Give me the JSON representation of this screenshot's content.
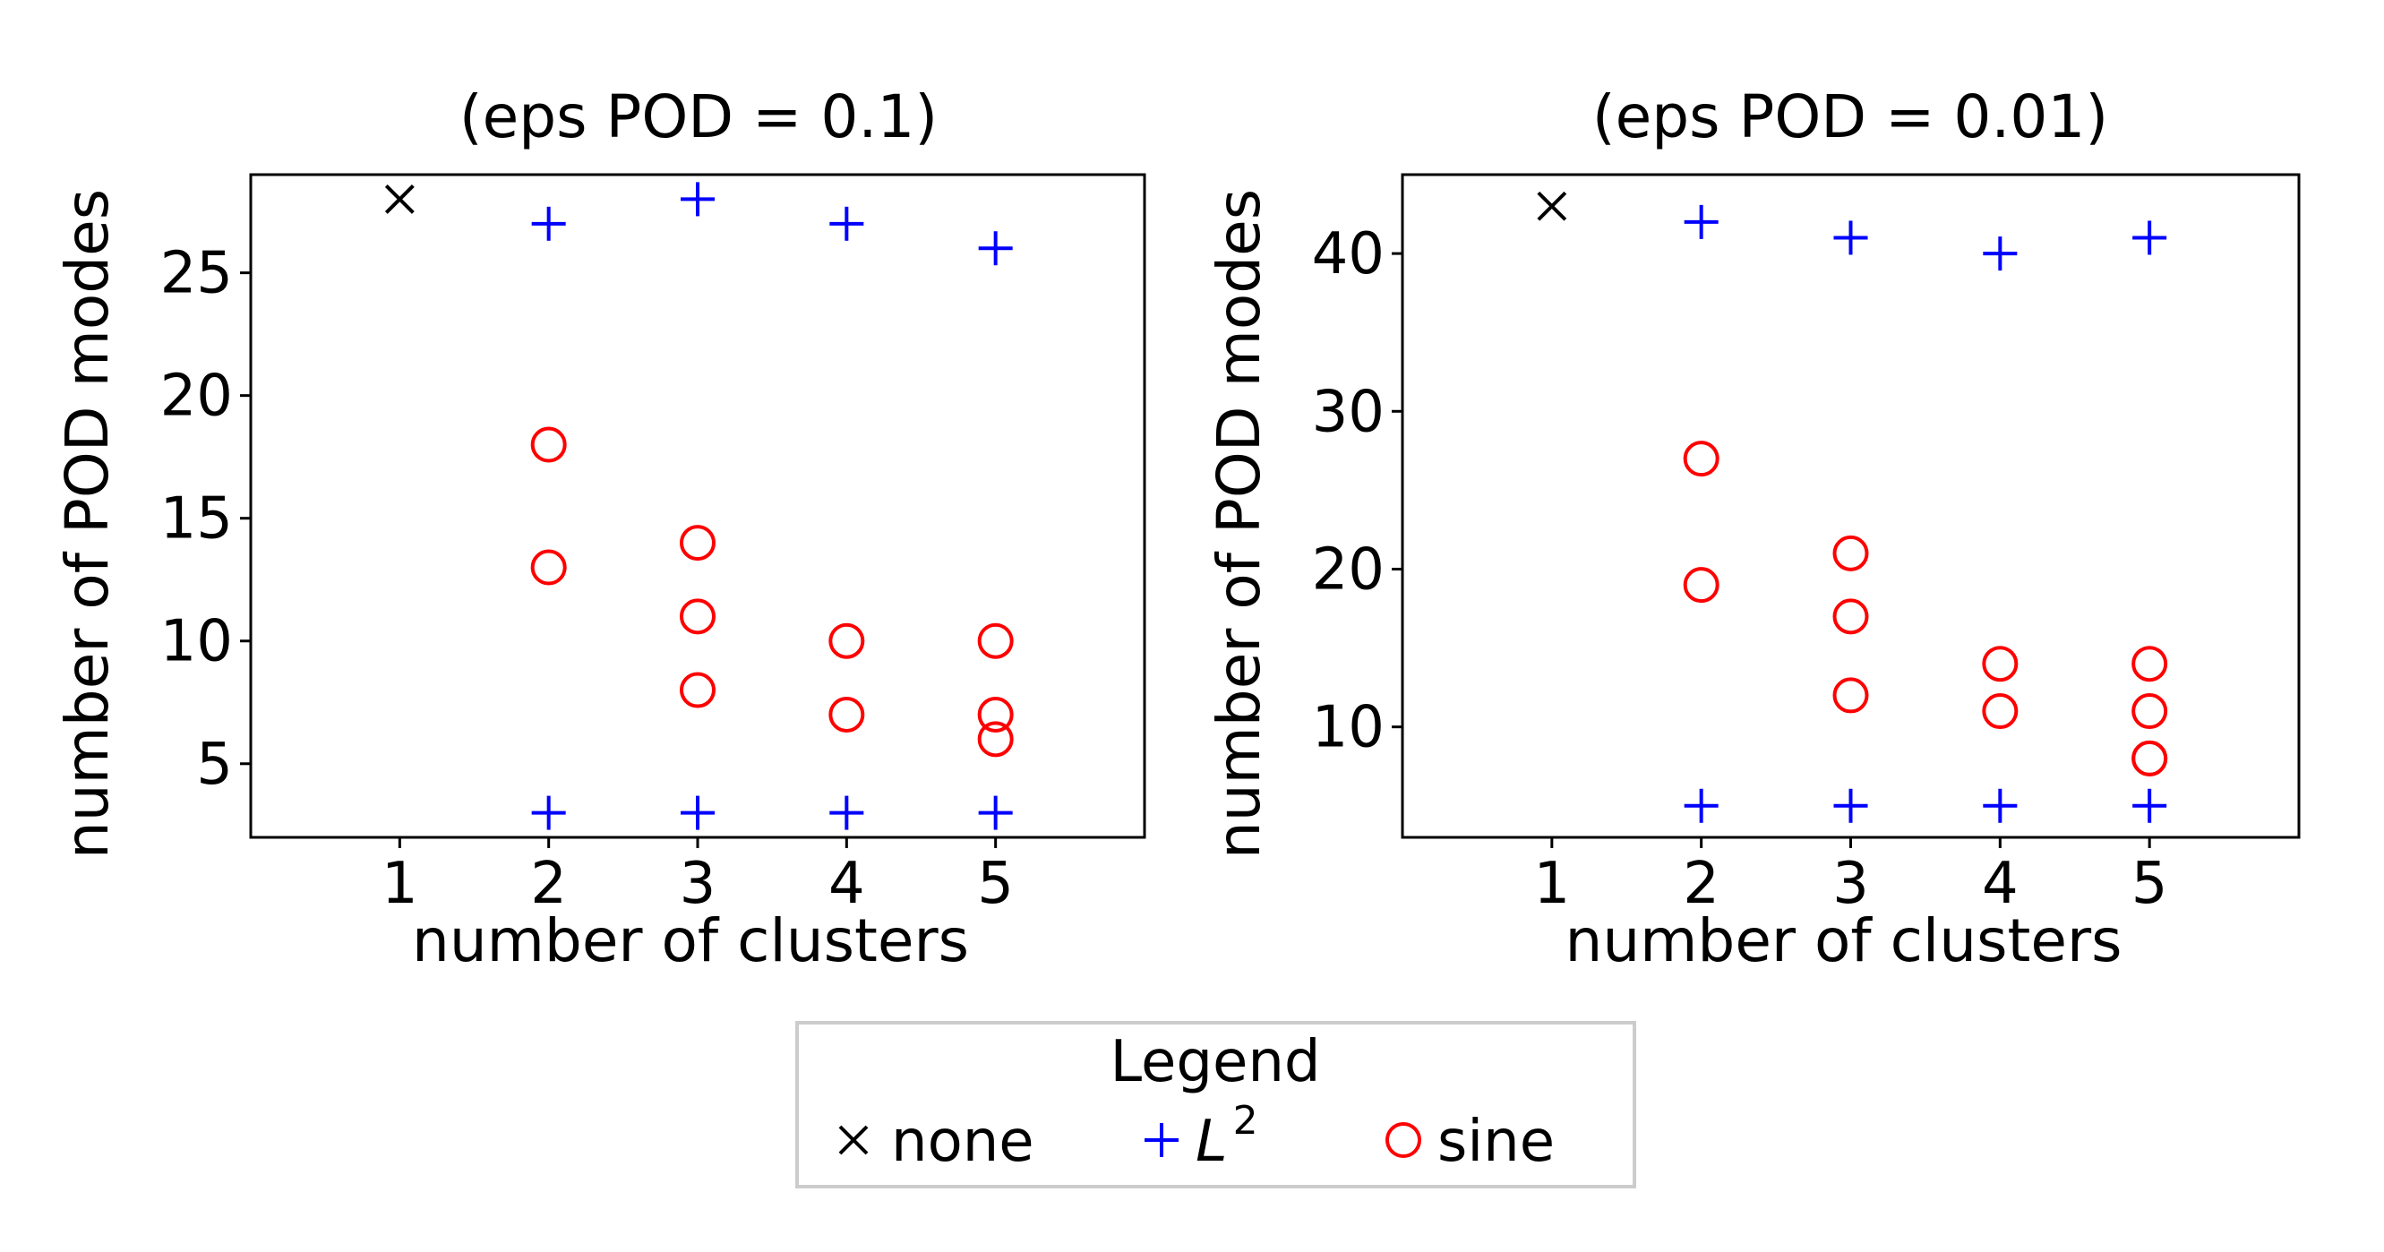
{
  "colors": {
    "none": "#000000",
    "L2": "#0000ff",
    "sine": "#ff0000",
    "legend_border": "#cccccc"
  },
  "chart_data": [
    {
      "type": "scatter",
      "title": "(eps POD = 0.1)",
      "xlabel": "number of clusters",
      "ylabel": "number of POD modes",
      "xlim": [
        0,
        6
      ],
      "ylim": [
        2,
        29
      ],
      "xticks": [
        1,
        2,
        3,
        4,
        5
      ],
      "yticks": [
        5,
        10,
        15,
        20,
        25
      ],
      "series": [
        {
          "name": "none",
          "marker": "x",
          "points": [
            [
              1,
              28
            ]
          ]
        },
        {
          "name": "L2",
          "marker": "+",
          "points": [
            [
              2,
              27
            ],
            [
              3,
              28
            ],
            [
              4,
              27
            ],
            [
              5,
              26
            ],
            [
              2,
              3
            ],
            [
              3,
              3
            ],
            [
              4,
              3
            ],
            [
              5,
              3
            ]
          ]
        },
        {
          "name": "sine",
          "marker": "o",
          "points": [
            [
              2,
              18
            ],
            [
              2,
              13
            ],
            [
              3,
              14
            ],
            [
              3,
              11
            ],
            [
              3,
              8
            ],
            [
              4,
              10
            ],
            [
              4,
              7
            ],
            [
              5,
              10
            ],
            [
              5,
              7
            ],
            [
              5,
              6
            ]
          ]
        }
      ]
    },
    {
      "type": "scatter",
      "title": "(eps POD = 0.01)",
      "xlabel": "number of clusters",
      "ylabel": "number of POD modes",
      "xlim": [
        0,
        6
      ],
      "ylim": [
        3,
        45
      ],
      "xticks": [
        1,
        2,
        3,
        4,
        5
      ],
      "yticks": [
        10,
        20,
        30,
        40
      ],
      "series": [
        {
          "name": "none",
          "marker": "x",
          "points": [
            [
              1,
              43
            ]
          ]
        },
        {
          "name": "L2",
          "marker": "+",
          "points": [
            [
              2,
              42
            ],
            [
              3,
              41
            ],
            [
              4,
              40
            ],
            [
              5,
              41
            ],
            [
              2,
              5
            ],
            [
              3,
              5
            ],
            [
              4,
              5
            ],
            [
              5,
              5
            ]
          ]
        },
        {
          "name": "sine",
          "marker": "o",
          "points": [
            [
              2,
              27
            ],
            [
              2,
              19
            ],
            [
              3,
              21
            ],
            [
              3,
              17
            ],
            [
              3,
              12
            ],
            [
              4,
              14
            ],
            [
              4,
              11
            ],
            [
              5,
              14
            ],
            [
              5,
              11
            ],
            [
              5,
              8
            ],
            [
              5,
              8
            ]
          ]
        }
      ]
    }
  ],
  "legend": {
    "title": "Legend",
    "placement": "bottom-center",
    "entries": [
      {
        "name": "none",
        "marker": "x",
        "label": "none"
      },
      {
        "name": "L2",
        "marker": "+",
        "label": "L",
        "superscript": "2"
      },
      {
        "name": "sine",
        "marker": "o",
        "label": "sine"
      }
    ]
  }
}
